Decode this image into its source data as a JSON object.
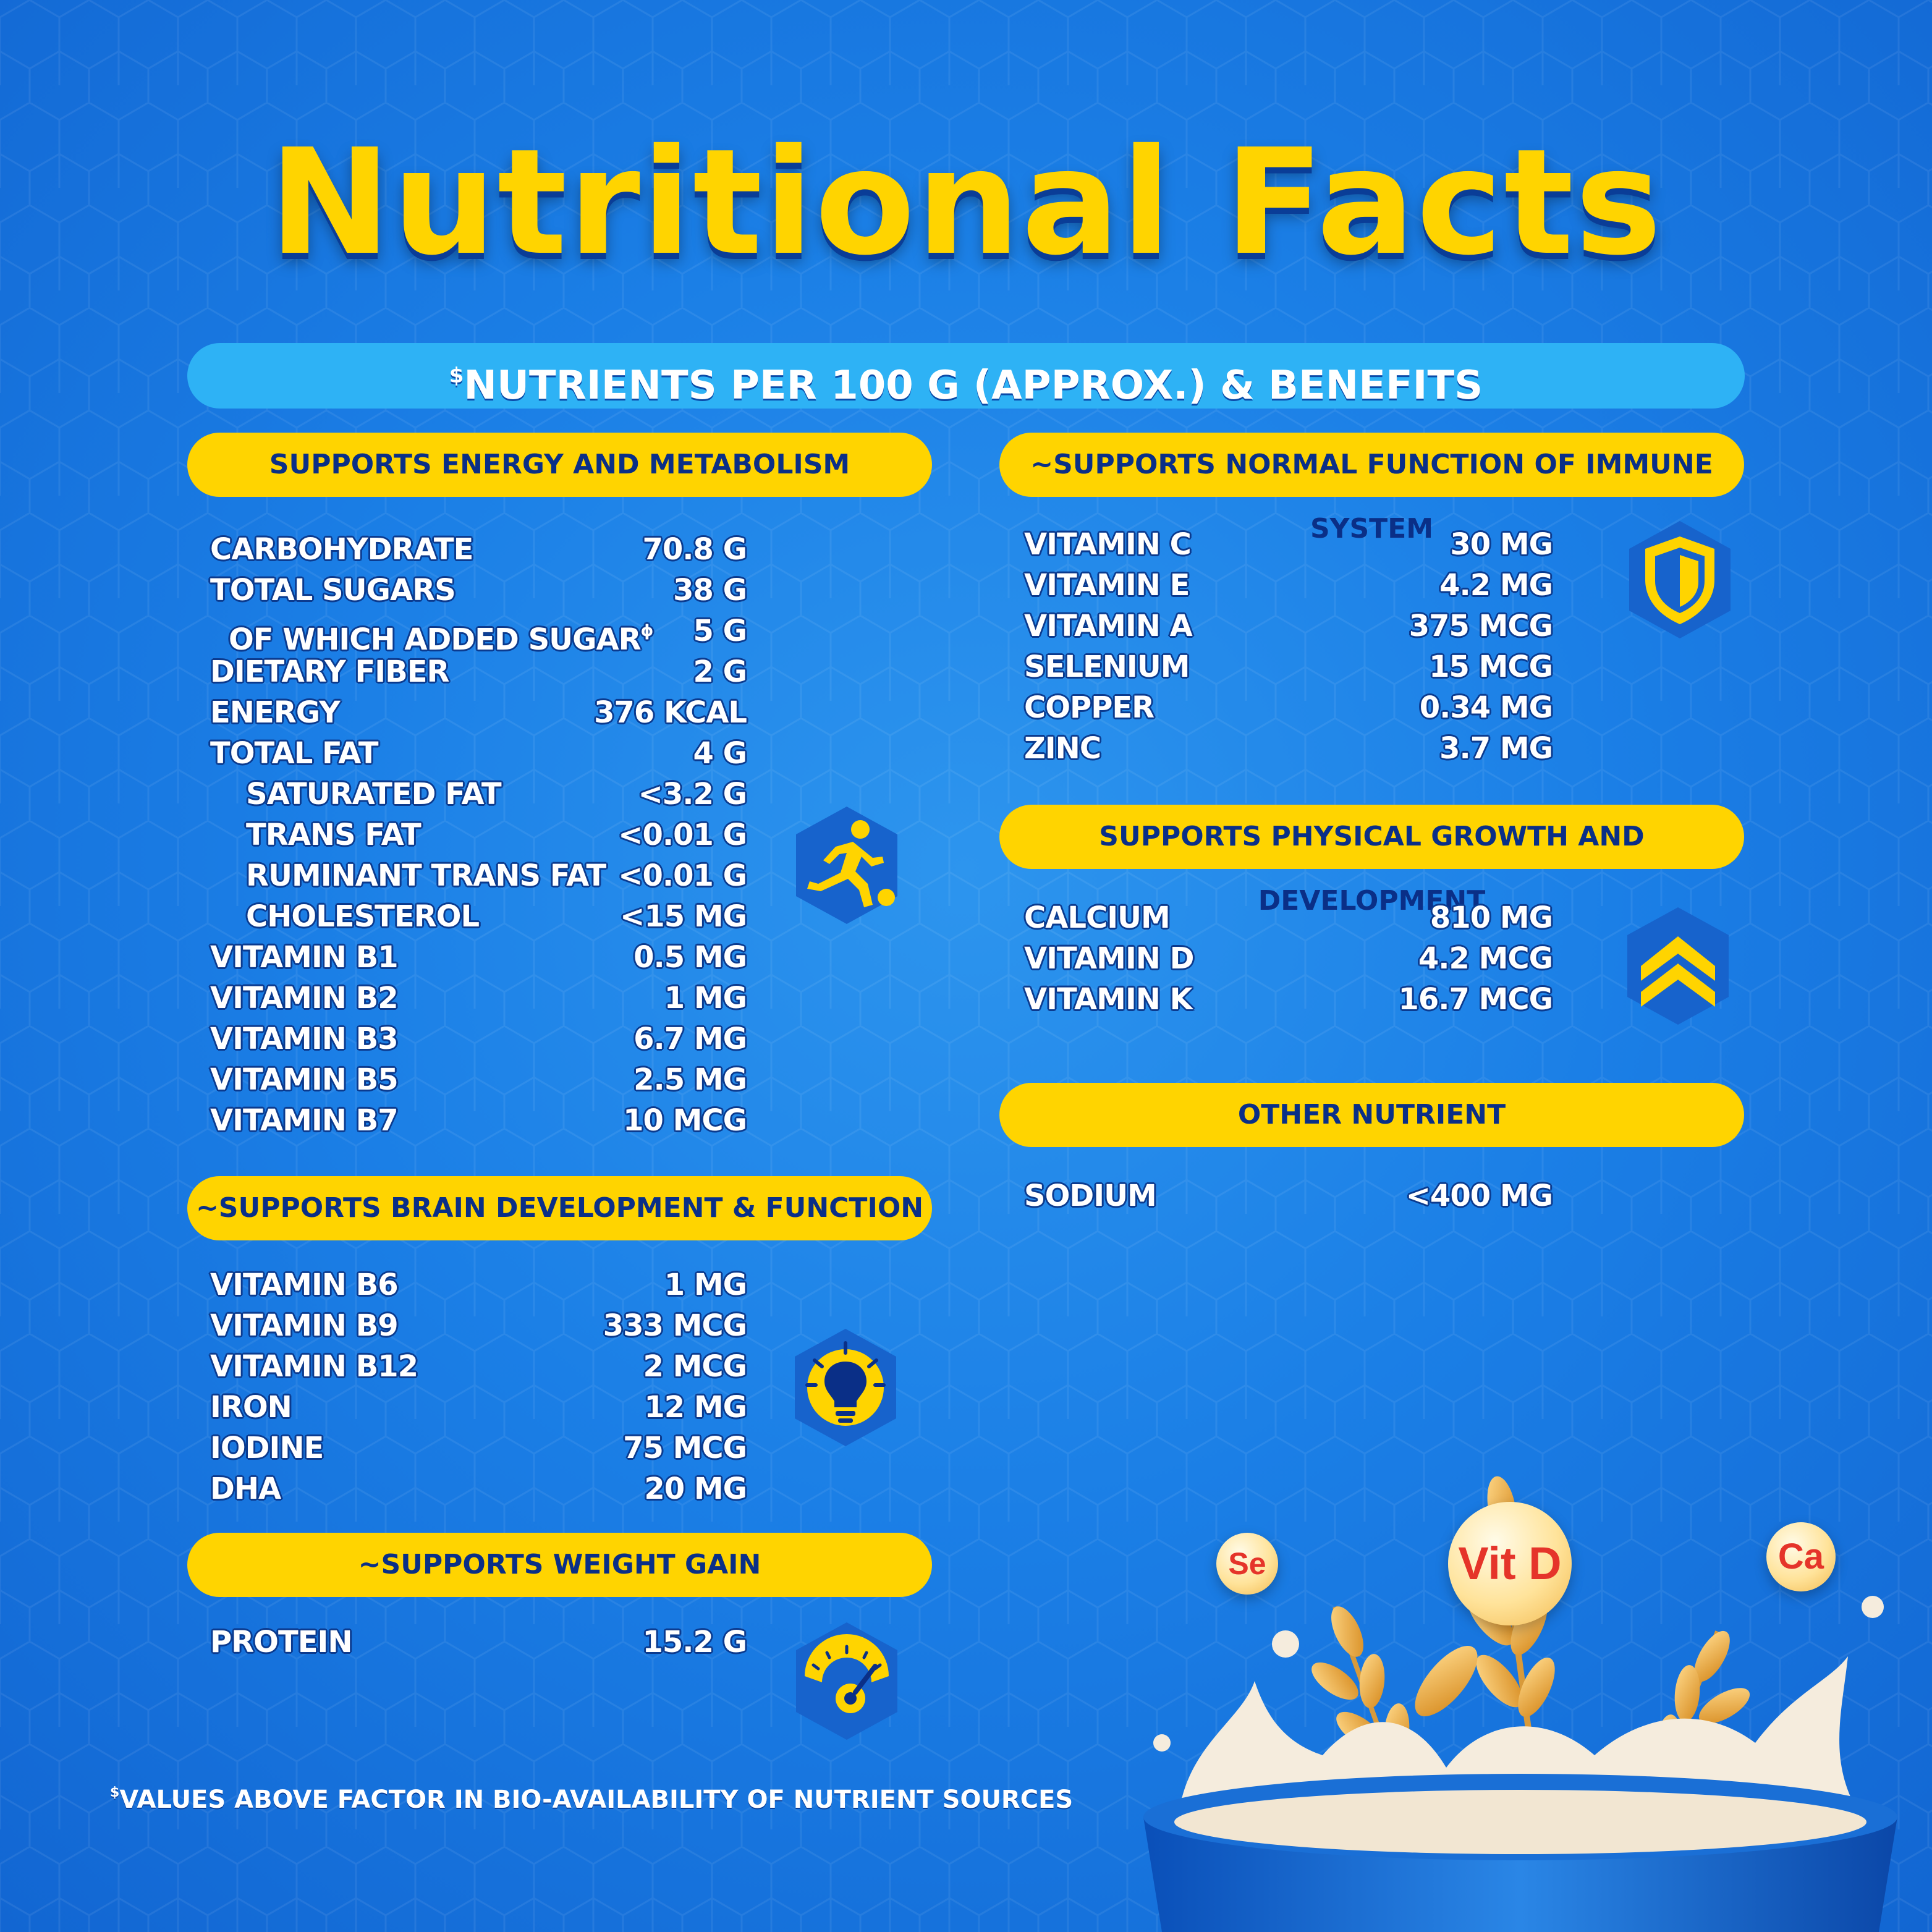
{
  "title": "Nutritional Facts",
  "banner": {
    "mark": "$",
    "text": "NUTRIENTS PER 100 G (APPROX.) & BENEFITS"
  },
  "sections": {
    "energy": {
      "heading": "SUPPORTS ENERGY AND METABOLISM",
      "icon": "running-athlete-icon",
      "rows": [
        {
          "name": "CARBOHYDRATE",
          "value": "70.8 G"
        },
        {
          "name": "TOTAL SUGARS",
          "value": "38 G"
        },
        {
          "name": "OF WHICH ADDED SUGAR",
          "mark": "ɸ",
          "value": "5 G"
        },
        {
          "name": "DIETARY FIBER",
          "value": "2 G"
        },
        {
          "name": "ENERGY",
          "value": "376 KCAL"
        },
        {
          "name": "TOTAL FAT",
          "value": "4 G"
        },
        {
          "name": "SATURATED FAT",
          "value": "<3.2 G"
        },
        {
          "name": "TRANS FAT",
          "value": "<0.01 G"
        },
        {
          "name": "RUMINANT TRANS FAT",
          "value": "<0.01 G"
        },
        {
          "name": "CHOLESTEROL",
          "value": "<15 MG"
        },
        {
          "name": "VITAMIN B1",
          "value": "0.5 MG"
        },
        {
          "name": "VITAMIN B2",
          "value": "1 MG"
        },
        {
          "name": "VITAMIN B3",
          "value": "6.7 MG"
        },
        {
          "name": "VITAMIN B5",
          "value": "2.5 MG"
        },
        {
          "name": "VITAMIN B7",
          "value": "10 MCG"
        }
      ]
    },
    "brain": {
      "heading": "~SUPPORTS BRAIN DEVELOPMENT & FUNCTION",
      "icon": "lightbulb-icon",
      "rows": [
        {
          "name": "VITAMIN B6",
          "value": "1 MG"
        },
        {
          "name": "VITAMIN B9",
          "value": "333 MCG"
        },
        {
          "name": "VITAMIN B12",
          "value": "2 MCG"
        },
        {
          "name": "IRON",
          "value": "12 MG"
        },
        {
          "name": "IODINE",
          "value": "75 MCG"
        },
        {
          "name": "DHA",
          "value": "20 MG"
        }
      ]
    },
    "weight": {
      "heading": "~SUPPORTS WEIGHT GAIN",
      "icon": "weighing-scale-icon",
      "rows": [
        {
          "name": "PROTEIN",
          "value": "15.2 G"
        }
      ]
    },
    "immune": {
      "heading": "~SUPPORTS NORMAL FUNCTION OF IMMUNE SYSTEM",
      "icon": "shield-icon",
      "rows": [
        {
          "name": "VITAMIN C",
          "value": "30 MG"
        },
        {
          "name": "VITAMIN E",
          "value": "4.2 MG"
        },
        {
          "name": "VITAMIN A",
          "value": "375 MCG"
        },
        {
          "name": "SELENIUM",
          "value": "15 MCG"
        },
        {
          "name": "COPPER",
          "value": "0.34 MG"
        },
        {
          "name": "ZINC",
          "value": "3.7 MG"
        }
      ]
    },
    "growth": {
      "heading": "SUPPORTS PHYSICAL GROWTH AND DEVELOPMENT",
      "icon": "double-chevron-up-icon",
      "rows": [
        {
          "name": "CALCIUM",
          "value": "810 MG"
        },
        {
          "name": "VITAMIN D",
          "value": "4.2 MCG"
        },
        {
          "name": "VITAMIN K",
          "value": "16.7 MCG"
        }
      ]
    },
    "other": {
      "heading": "OTHER NUTRIENT",
      "rows": [
        {
          "name": "SODIUM",
          "value": "<400 MG"
        }
      ]
    }
  },
  "badges": {
    "se": "Se",
    "vitd": "Vit D",
    "ca": "Ca"
  },
  "footer": {
    "mark": "$",
    "text": "VALUES ABOVE FACTOR IN BIO-AVAILABILITY OF NUTRIENT SOURCES"
  },
  "colors": {
    "accent_yellow": "#ffd400",
    "banner_blue": "#2eb2f5",
    "navy": "#0a2f87",
    "background": "#1b7fe6"
  }
}
